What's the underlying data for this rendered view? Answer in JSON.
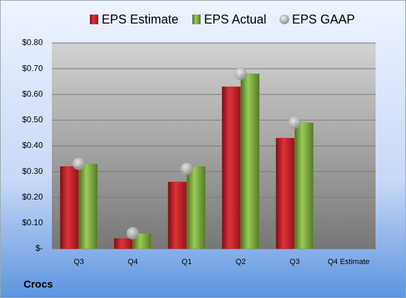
{
  "chart_data": {
    "type": "bar",
    "footnote": "Crocs",
    "categories": [
      "Q3",
      "Q4",
      "Q1",
      "Q2",
      "Q3",
      "Q4 Estimate"
    ],
    "series": [
      {
        "name": "EPS Estimate",
        "color": "#c0262a",
        "type": "bar",
        "values": [
          0.32,
          0.04,
          0.26,
          0.63,
          0.43,
          null
        ]
      },
      {
        "name": "EPS Actual",
        "color": "#76a33a",
        "type": "bar",
        "values": [
          0.33,
          0.06,
          0.32,
          0.68,
          0.49,
          null
        ]
      },
      {
        "name": "EPS GAAP",
        "color": "#a8a8a8",
        "type": "scatter",
        "values": [
          0.33,
          0.06,
          0.31,
          0.68,
          0.49,
          null
        ]
      }
    ],
    "ylim": [
      0,
      0.8
    ],
    "yticks": [
      {
        "value": 0,
        "label": "$-"
      },
      {
        "value": 0.1,
        "label": "$0.10"
      },
      {
        "value": 0.2,
        "label": "$0.20"
      },
      {
        "value": 0.3,
        "label": "$0.30"
      },
      {
        "value": 0.4,
        "label": "$0.40"
      },
      {
        "value": 0.5,
        "label": "$0.50"
      },
      {
        "value": 0.6,
        "label": "$0.60"
      },
      {
        "value": 0.7,
        "label": "$0.70"
      },
      {
        "value": 0.8,
        "label": "$0.80"
      }
    ],
    "grid": true,
    "legend": "top"
  }
}
